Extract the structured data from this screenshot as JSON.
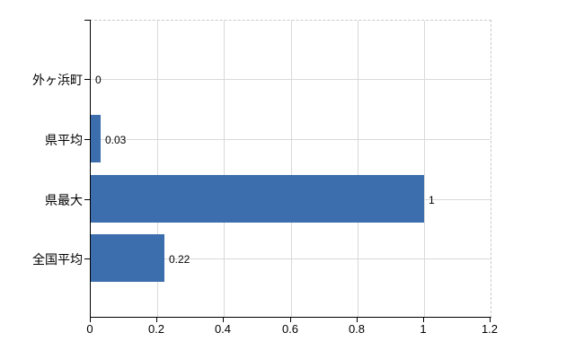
{
  "chart_data": {
    "type": "bar",
    "orientation": "horizontal",
    "title": "",
    "xlabel": "",
    "ylabel": "",
    "categories": [
      "外ヶ浜町",
      "県平均",
      "県最大",
      "全国平均"
    ],
    "values": [
      0,
      0.03,
      1,
      0.22
    ],
    "value_labels": [
      "0",
      "0.03",
      "1",
      "0.22"
    ],
    "x_ticks": [
      0,
      0.2,
      0.4,
      0.6,
      0.8,
      1,
      1.2
    ],
    "x_tick_labels": [
      "0",
      "0.2",
      "0.4",
      "0.6",
      "0.8",
      "1",
      "1.2"
    ],
    "xlim": [
      0,
      1.2
    ],
    "grid": true,
    "legend": false,
    "colors": {
      "bar": "#3c6dac",
      "gridline": "#d9d9d9",
      "plot_border_dashed": "#c9c9c9",
      "axis": "#000000",
      "text": "#000000",
      "background": "#ffffff"
    }
  }
}
